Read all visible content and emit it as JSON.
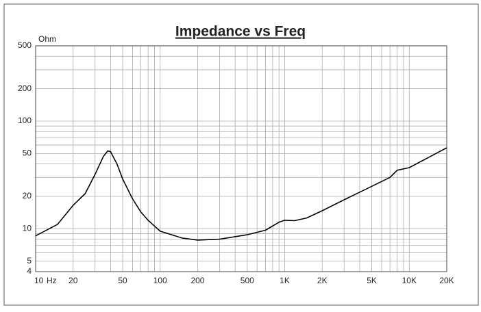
{
  "chart_data": {
    "type": "line",
    "title": "Impedance vs Freq",
    "y_label": "Ohm",
    "x_label": "Hz",
    "xscale": "log",
    "yscale": "log",
    "xlim": [
      10,
      20000
    ],
    "ylim": [
      4,
      500
    ],
    "xticks": [
      10,
      20,
      50,
      100,
      200,
      500,
      {
        "value": 1000,
        "label": "1K"
      },
      {
        "value": 2000,
        "label": "2K"
      },
      {
        "value": 5000,
        "label": "5K"
      },
      {
        "value": 10000,
        "label": "10K"
      },
      {
        "value": 20000,
        "label": "20K"
      }
    ],
    "yticks": [
      4,
      5,
      10,
      20,
      50,
      100,
      200,
      500
    ],
    "xgrid": [
      10,
      20,
      30,
      40,
      50,
      60,
      70,
      80,
      90,
      100,
      200,
      300,
      400,
      500,
      600,
      700,
      800,
      900,
      1000,
      2000,
      3000,
      4000,
      5000,
      6000,
      7000,
      8000,
      9000,
      10000,
      20000
    ],
    "ygrid": [
      4,
      5,
      6,
      7,
      8,
      9,
      10,
      20,
      30,
      40,
      50,
      60,
      70,
      80,
      90,
      100,
      200,
      300,
      400,
      500
    ],
    "grid": true,
    "series": [
      {
        "name": "Impedance",
        "color": "#000000",
        "x": [
          10,
          15,
          20,
          25,
          30,
          35,
          38,
          40,
          45,
          50,
          60,
          70,
          80,
          100,
          150,
          200,
          300,
          500,
          700,
          900,
          1000,
          1200,
          1500,
          2000,
          3000,
          5000,
          7000,
          8000,
          10000,
          20000
        ],
        "values": [
          8.6,
          11,
          16.5,
          21.2,
          32,
          47,
          53,
          52,
          40,
          29,
          19,
          14.3,
          12,
          9.5,
          8.2,
          7.85,
          8,
          8.8,
          9.7,
          11.5,
          12,
          11.9,
          12.6,
          14.7,
          18.6,
          24.8,
          30,
          35,
          37,
          56.5
        ]
      }
    ]
  }
}
